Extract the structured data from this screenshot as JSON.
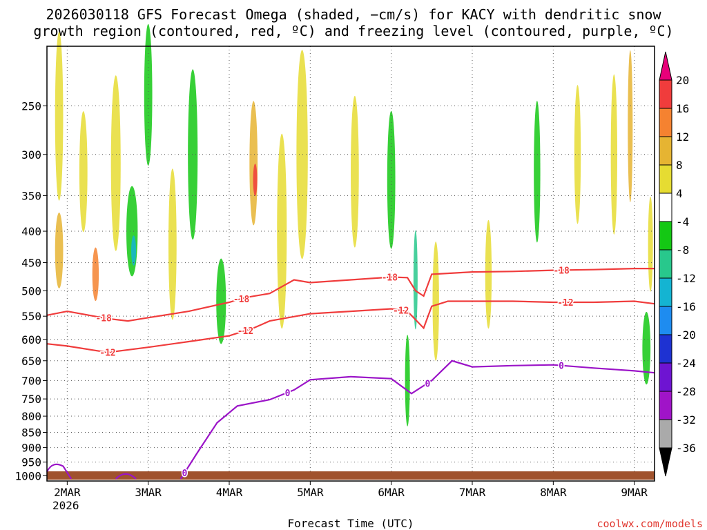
{
  "title_line1": "2026030118 GFS Forecast Omega (shaded, −cm/s) for KACY with dendritic snow",
  "title_line2": "growth region (contoured, red, ºC) and freezing level (contoured, purple, ºC)",
  "credit": "coolwx.com/models",
  "colors": {
    "dendritic": "#f03c3c",
    "freezing": "#9b14c8",
    "ground": "#a0522d",
    "grid": "#555555"
  },
  "chart_data": {
    "type": "heatmap",
    "title": "2026030118 GFS Forecast Omega (shaded, −cm/s) for KACY with dendritic snow growth region (contoured, red, ºC) and freezing level (contoured, purple, ºC)",
    "xlabel": "Forecast Time (UTC)",
    "ylabel": "",
    "x_ticks": [
      "2MAR",
      "3MAR",
      "4MAR",
      "5MAR",
      "6MAR",
      "7MAR",
      "8MAR",
      "9MAR"
    ],
    "x_year_label": "2026",
    "x_range_days": [
      1.75,
      9.25
    ],
    "y_ticks": [
      250,
      300,
      350,
      400,
      450,
      500,
      550,
      600,
      650,
      700,
      750,
      800,
      850,
      900,
      950,
      1000
    ],
    "y_range_hpa": [
      200,
      1020
    ],
    "y_scale": "log-pressure",
    "colorbar": {
      "levels": [
        20,
        16,
        12,
        8,
        4,
        -4,
        -8,
        -12,
        -16,
        -20,
        -24,
        -28,
        -32,
        -36
      ],
      "colors": [
        "#e8007a",
        "#f03c3c",
        "#f58230",
        "#e6b432",
        "#e6dc32",
        "#ffffff",
        "#14c814",
        "#28c88c",
        "#14b4d2",
        "#1e8cf0",
        "#1e32d2",
        "#6e14d2",
        "#a014c8",
        "#aaaaaa",
        "#000000"
      ]
    },
    "contours": [
      {
        "name": "-18 ºC (dendritic top)",
        "color": "#f03c3c",
        "label": "-18",
        "points": [
          [
            1.75,
            548
          ],
          [
            2.0,
            540
          ],
          [
            2.5,
            555
          ],
          [
            2.75,
            560
          ],
          [
            3.0,
            553
          ],
          [
            3.5,
            540
          ],
          [
            4.0,
            522
          ],
          [
            4.2,
            513
          ],
          [
            4.5,
            505
          ],
          [
            4.8,
            480
          ],
          [
            5.0,
            485
          ],
          [
            5.5,
            480
          ],
          [
            6.0,
            475
          ],
          [
            6.2,
            476
          ],
          [
            6.3,
            500
          ],
          [
            6.4,
            510
          ],
          [
            6.5,
            470
          ],
          [
            7.0,
            466
          ],
          [
            7.5,
            465
          ],
          [
            8.0,
            463
          ],
          [
            8.5,
            462
          ],
          [
            9.0,
            460
          ],
          [
            9.25,
            460
          ]
        ],
        "label_x": [
          2.45,
          4.15,
          5.98,
          8.1
        ]
      },
      {
        "name": "-12 ºC (dendritic bottom)",
        "color": "#f03c3c",
        "label": "-12",
        "points": [
          [
            1.75,
            610
          ],
          [
            2.0,
            615
          ],
          [
            2.5,
            630
          ],
          [
            3.0,
            618
          ],
          [
            3.5,
            605
          ],
          [
            4.0,
            592
          ],
          [
            4.3,
            575
          ],
          [
            4.5,
            560
          ],
          [
            5.0,
            545
          ],
          [
            5.5,
            540
          ],
          [
            6.0,
            535
          ],
          [
            6.2,
            540
          ],
          [
            6.4,
            575
          ],
          [
            6.5,
            530
          ],
          [
            6.7,
            520
          ],
          [
            7.0,
            520
          ],
          [
            7.5,
            520
          ],
          [
            8.0,
            522
          ],
          [
            8.5,
            522
          ],
          [
            9.0,
            520
          ],
          [
            9.25,
            525
          ]
        ],
        "label_x": [
          2.5,
          4.2,
          6.12,
          8.15
        ]
      },
      {
        "name": "0 ºC (freezing level)",
        "color": "#9b14c8",
        "label": "0",
        "points": [
          [
            3.4,
            1012
          ],
          [
            3.6,
            920
          ],
          [
            3.85,
            820
          ],
          [
            4.1,
            770
          ],
          [
            4.5,
            752
          ],
          [
            4.8,
            725
          ],
          [
            5.0,
            698
          ],
          [
            5.5,
            690
          ],
          [
            6.0,
            695
          ],
          [
            6.25,
            735
          ],
          [
            6.5,
            700
          ],
          [
            6.75,
            650
          ],
          [
            7.0,
            665
          ],
          [
            7.5,
            662
          ],
          [
            8.0,
            660
          ],
          [
            8.5,
            668
          ],
          [
            9.0,
            675
          ],
          [
            9.25,
            680
          ]
        ],
        "label_x": [
          3.45,
          4.72,
          6.45,
          8.1
        ]
      }
    ]
  }
}
